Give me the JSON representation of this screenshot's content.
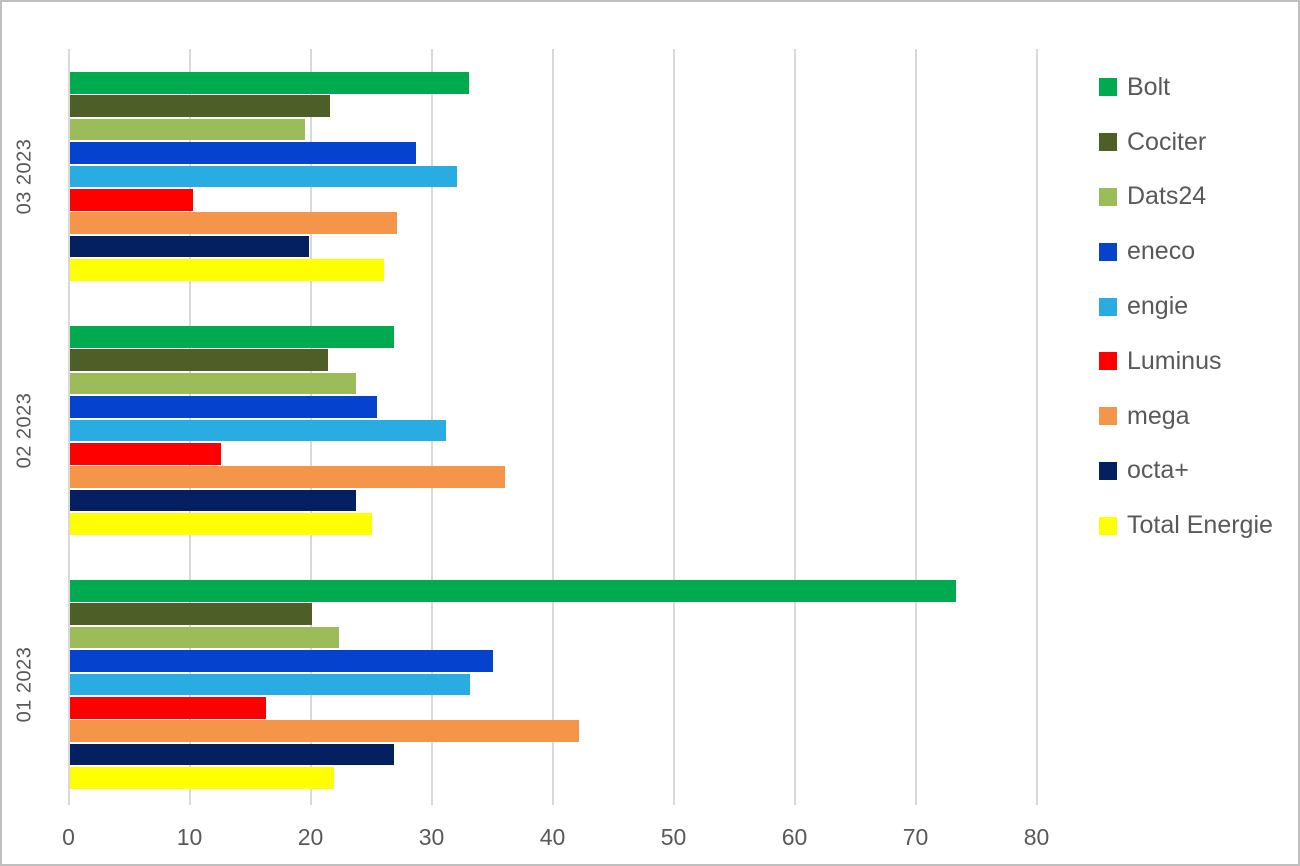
{
  "chart_data": {
    "type": "bar",
    "orientation": "horizontal",
    "title": "",
    "xlabel": "",
    "ylabel": "",
    "categories": [
      "03 2023",
      "02 2023",
      "01 2023"
    ],
    "series": [
      {
        "name": "Bolt",
        "color": "#00AB4F",
        "values": [
          33.0,
          26.8,
          73.3
        ]
      },
      {
        "name": "Cociter",
        "color": "#4D5F27",
        "values": [
          21.5,
          21.4,
          20.0
        ]
      },
      {
        "name": "Dats24",
        "color": "#9CBB59",
        "values": [
          19.5,
          23.7,
          22.3
        ]
      },
      {
        "name": "eneco",
        "color": "#0542CE",
        "values": [
          28.6,
          25.4,
          35.0
        ]
      },
      {
        "name": "engie",
        "color": "#29ACE2",
        "values": [
          32.0,
          31.1,
          33.1
        ]
      },
      {
        "name": "Luminus",
        "color": "#FE0000",
        "values": [
          10.2,
          12.5,
          16.2
        ]
      },
      {
        "name": "mega",
        "color": "#F5954A",
        "values": [
          27.1,
          36.0,
          42.1
        ]
      },
      {
        "name": "octa+",
        "color": "#052060",
        "values": [
          19.8,
          23.7,
          26.8
        ]
      },
      {
        "name": "Total Energie",
        "color": "#FFFF00",
        "values": [
          26.0,
          25.0,
          21.9
        ]
      }
    ],
    "xlim": [
      0,
      80
    ],
    "x_ticks": [
      "0",
      "10",
      "20",
      "30",
      "40",
      "50",
      "60",
      "70",
      "80"
    ],
    "grid": "vertical-major",
    "legend_position": "right",
    "colors": {
      "axis_text": "#595959",
      "gridline": "#D9D9D9",
      "background": "#FFFFFF",
      "frame_border": "#BFBFBF"
    }
  }
}
